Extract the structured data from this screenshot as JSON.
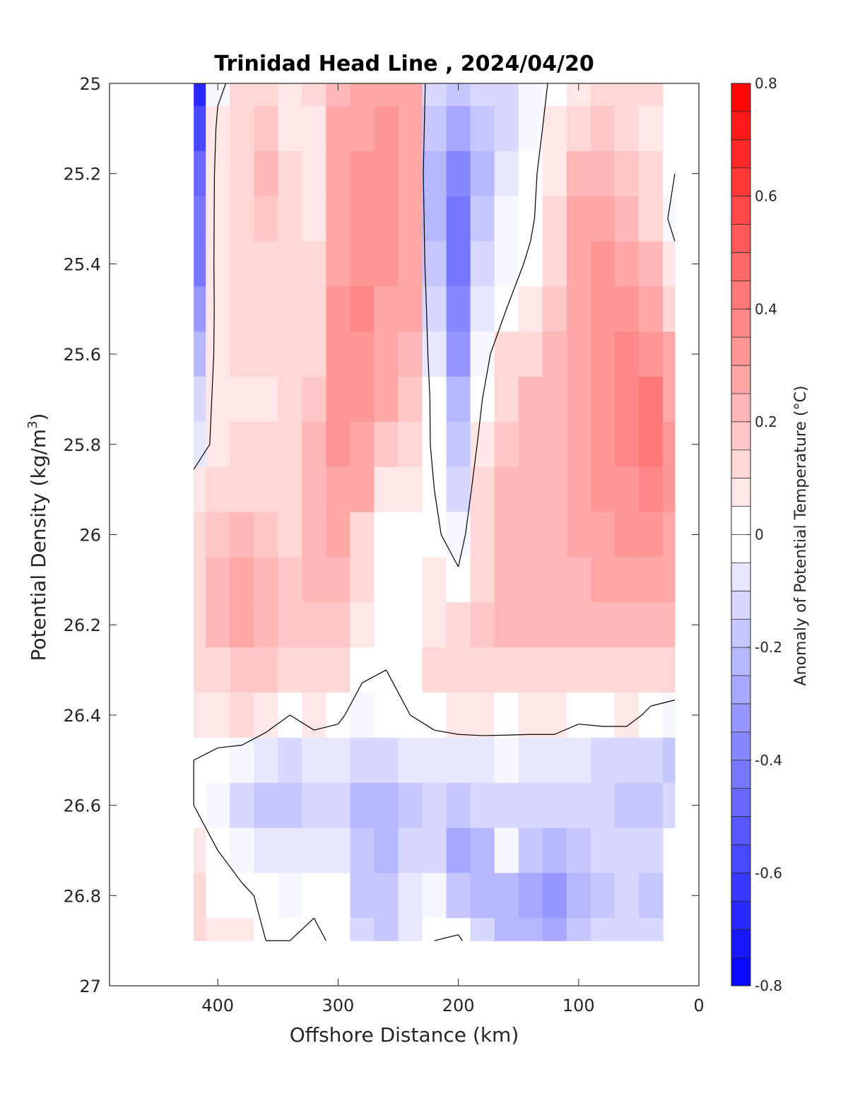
{
  "chart_data": {
    "type": "heatmap",
    "title": "Trinidad Head Line , 2024/04/20",
    "xlabel": "Offshore Distance (km)",
    "ylabel_main": "Potential Density (kg/m",
    "ylabel_sup": "3",
    "ylabel_close": ")",
    "colorbar_label": "Anomaly of Potential Temperature (°C)",
    "xlim": [
      490,
      0
    ],
    "ylim": [
      25,
      27
    ],
    "x_reversed": true,
    "y_reversed": true,
    "xticks": [
      400,
      300,
      200,
      100,
      0
    ],
    "xtick_labels": [
      "400",
      "300",
      "200",
      "100",
      "0"
    ],
    "yticks": [
      25,
      25.2,
      25.4,
      25.6,
      25.8,
      26,
      26.2,
      26.4,
      26.6,
      26.8,
      27
    ],
    "ytick_labels": [
      "25",
      "25.2",
      "25.4",
      "25.6",
      "25.8",
      "26",
      "26.2",
      "26.4",
      "26.6",
      "26.8",
      "27"
    ],
    "colorbar_range": [
      -0.8,
      0.8
    ],
    "colorbar_step": 0.05,
    "colorbar_ticks": [
      0.8,
      0.6,
      0.4,
      0.2,
      0,
      -0.2,
      -0.4,
      -0.6,
      -0.8
    ],
    "colorbar_tick_labels": [
      "0.8",
      "0.6",
      "0.4",
      "0.2",
      "0",
      "-0.2",
      "-0.4",
      "-0.6",
      "-0.8"
    ],
    "colormap": {
      "negative": "#0000ff",
      "zero": "#ffffff",
      "positive": "#ff0000"
    },
    "x": [
      420,
      400,
      380,
      360,
      340,
      320,
      300,
      280,
      260,
      240,
      220,
      200,
      180,
      160,
      140,
      120,
      100,
      80,
      60,
      40,
      20
    ],
    "y": [
      25.0,
      25.1,
      25.2,
      25.3,
      25.4,
      25.5,
      25.6,
      25.7,
      25.8,
      25.9,
      26.0,
      26.1,
      26.2,
      26.3,
      26.4,
      26.5,
      26.6,
      26.7,
      26.8,
      26.9
    ],
    "z": [
      [
        -0.7,
        -0.05,
        0.1,
        0.12,
        0.05,
        0.12,
        0.22,
        0.25,
        0.28,
        0.25,
        -0.15,
        -0.2,
        -0.15,
        -0.15,
        -0.05,
        0.02,
        0.05,
        0.1,
        0.15,
        0.1,
        null
      ],
      [
        -0.6,
        0.05,
        0.12,
        0.18,
        0.06,
        0.05,
        0.25,
        0.3,
        0.32,
        0.28,
        -0.2,
        -0.3,
        -0.2,
        -0.12,
        -0.05,
        0.05,
        0.12,
        0.18,
        0.15,
        0.05,
        null
      ],
      [
        -0.5,
        0.08,
        0.15,
        0.22,
        0.12,
        0.05,
        0.28,
        0.33,
        0.32,
        0.3,
        -0.25,
        -0.38,
        -0.22,
        -0.1,
        -0.03,
        0.08,
        0.2,
        0.22,
        0.18,
        0.1,
        0.0
      ],
      [
        -0.45,
        0.08,
        0.15,
        0.18,
        0.12,
        0.08,
        0.3,
        0.34,
        0.33,
        0.3,
        -0.22,
        -0.42,
        -0.2,
        -0.05,
        -0.02,
        0.1,
        0.25,
        0.28,
        0.22,
        0.12,
        -0.05
      ],
      [
        -0.42,
        0.08,
        0.12,
        0.15,
        0.12,
        0.1,
        0.3,
        0.35,
        0.32,
        0.28,
        -0.18,
        -0.45,
        -0.15,
        -0.05,
        0.02,
        0.15,
        0.3,
        0.35,
        0.3,
        0.2,
        0.05
      ],
      [
        -0.35,
        0.06,
        0.1,
        0.12,
        0.12,
        0.12,
        0.32,
        0.36,
        0.3,
        0.25,
        -0.12,
        -0.4,
        -0.1,
        0.0,
        0.08,
        0.18,
        0.3,
        0.35,
        0.35,
        0.25,
        0.1
      ],
      [
        -0.25,
        0.05,
        0.1,
        0.1,
        0.1,
        0.15,
        0.33,
        0.35,
        0.28,
        0.22,
        -0.08,
        -0.32,
        -0.05,
        0.1,
        0.15,
        0.2,
        0.28,
        0.33,
        0.38,
        0.35,
        0.25
      ],
      [
        -0.15,
        0.05,
        0.08,
        0.08,
        0.1,
        0.18,
        0.33,
        0.33,
        0.25,
        0.18,
        -0.04,
        -0.25,
        0.0,
        0.15,
        0.2,
        0.2,
        0.28,
        0.33,
        0.38,
        0.4,
        0.3
      ],
      [
        -0.1,
        0.05,
        0.1,
        0.1,
        0.1,
        0.2,
        0.32,
        0.3,
        0.18,
        0.1,
        -0.02,
        -0.18,
        0.05,
        0.18,
        0.22,
        0.22,
        0.28,
        0.33,
        0.36,
        0.4,
        0.35
      ],
      [
        0.08,
        0.12,
        0.15,
        0.15,
        0.12,
        0.2,
        0.3,
        0.25,
        0.05,
        0.05,
        0.0,
        -0.12,
        0.1,
        0.2,
        0.22,
        0.22,
        0.28,
        0.32,
        0.34,
        0.38,
        0.33
      ],
      [
        0.1,
        0.18,
        0.22,
        0.18,
        0.15,
        0.2,
        0.25,
        0.15,
        0.0,
        0.02,
        0.02,
        -0.05,
        0.12,
        0.22,
        0.22,
        0.22,
        0.25,
        0.3,
        0.32,
        0.34,
        0.3
      ],
      [
        0.1,
        0.2,
        0.26,
        0.22,
        0.18,
        0.2,
        0.2,
        0.1,
        0.0,
        0.02,
        0.05,
        0.02,
        0.15,
        0.2,
        0.22,
        0.22,
        0.22,
        0.25,
        0.28,
        0.28,
        0.25
      ],
      [
        0.1,
        0.2,
        0.25,
        0.22,
        0.18,
        0.18,
        0.16,
        0.05,
        0.0,
        0.02,
        0.08,
        0.15,
        0.18,
        0.2,
        0.2,
        0.2,
        0.2,
        0.2,
        0.22,
        0.22,
        0.2
      ],
      [
        0.1,
        0.15,
        0.18,
        0.18,
        0.15,
        0.15,
        0.12,
        0.02,
        0.0,
        0.02,
        0.1,
        0.15,
        0.15,
        0.15,
        0.15,
        0.15,
        0.12,
        0.12,
        0.12,
        0.12,
        0.1
      ],
      [
        0.05,
        0.08,
        0.1,
        0.05,
        0.0,
        0.05,
        0.02,
        -0.05,
        -0.02,
        0.0,
        0.04,
        0.06,
        0.05,
        0.04,
        0.06,
        0.06,
        0.02,
        0.04,
        0.05,
        -0.03,
        -0.05
      ],
      [
        0.0,
        -0.03,
        -0.05,
        -0.08,
        -0.12,
        -0.1,
        -0.08,
        -0.12,
        -0.15,
        -0.1,
        -0.08,
        -0.08,
        -0.06,
        -0.05,
        -0.08,
        -0.08,
        -0.08,
        -0.12,
        -0.15,
        -0.15,
        -0.18
      ],
      [
        0.0,
        -0.05,
        -0.12,
        -0.18,
        -0.2,
        -0.15,
        -0.12,
        -0.22,
        -0.25,
        -0.18,
        -0.15,
        -0.18,
        -0.15,
        -0.15,
        -0.15,
        -0.15,
        -0.12,
        -0.15,
        -0.18,
        -0.18,
        -0.15
      ],
      [
        0.05,
        0.0,
        -0.05,
        -0.08,
        -0.1,
        -0.08,
        -0.08,
        -0.2,
        -0.25,
        -0.15,
        -0.15,
        -0.28,
        -0.22,
        -0.05,
        -0.18,
        -0.25,
        -0.18,
        -0.15,
        -0.15,
        -0.15,
        null
      ],
      [
        0.15,
        0.02,
        0.02,
        -0.02,
        -0.05,
        -0.02,
        -0.02,
        -0.18,
        -0.2,
        -0.08,
        -0.05,
        -0.2,
        -0.22,
        -0.22,
        -0.28,
        -0.35,
        -0.25,
        -0.18,
        -0.15,
        -0.2,
        null
      ],
      [
        0.12,
        0.05,
        0.05,
        0.0,
        0.0,
        0.02,
        -0.02,
        -0.15,
        -0.2,
        -0.08,
        0.0,
        0.03,
        -0.15,
        -0.22,
        -0.25,
        -0.28,
        -0.2,
        -0.12,
        -0.12,
        -0.15,
        null
      ]
    ]
  }
}
